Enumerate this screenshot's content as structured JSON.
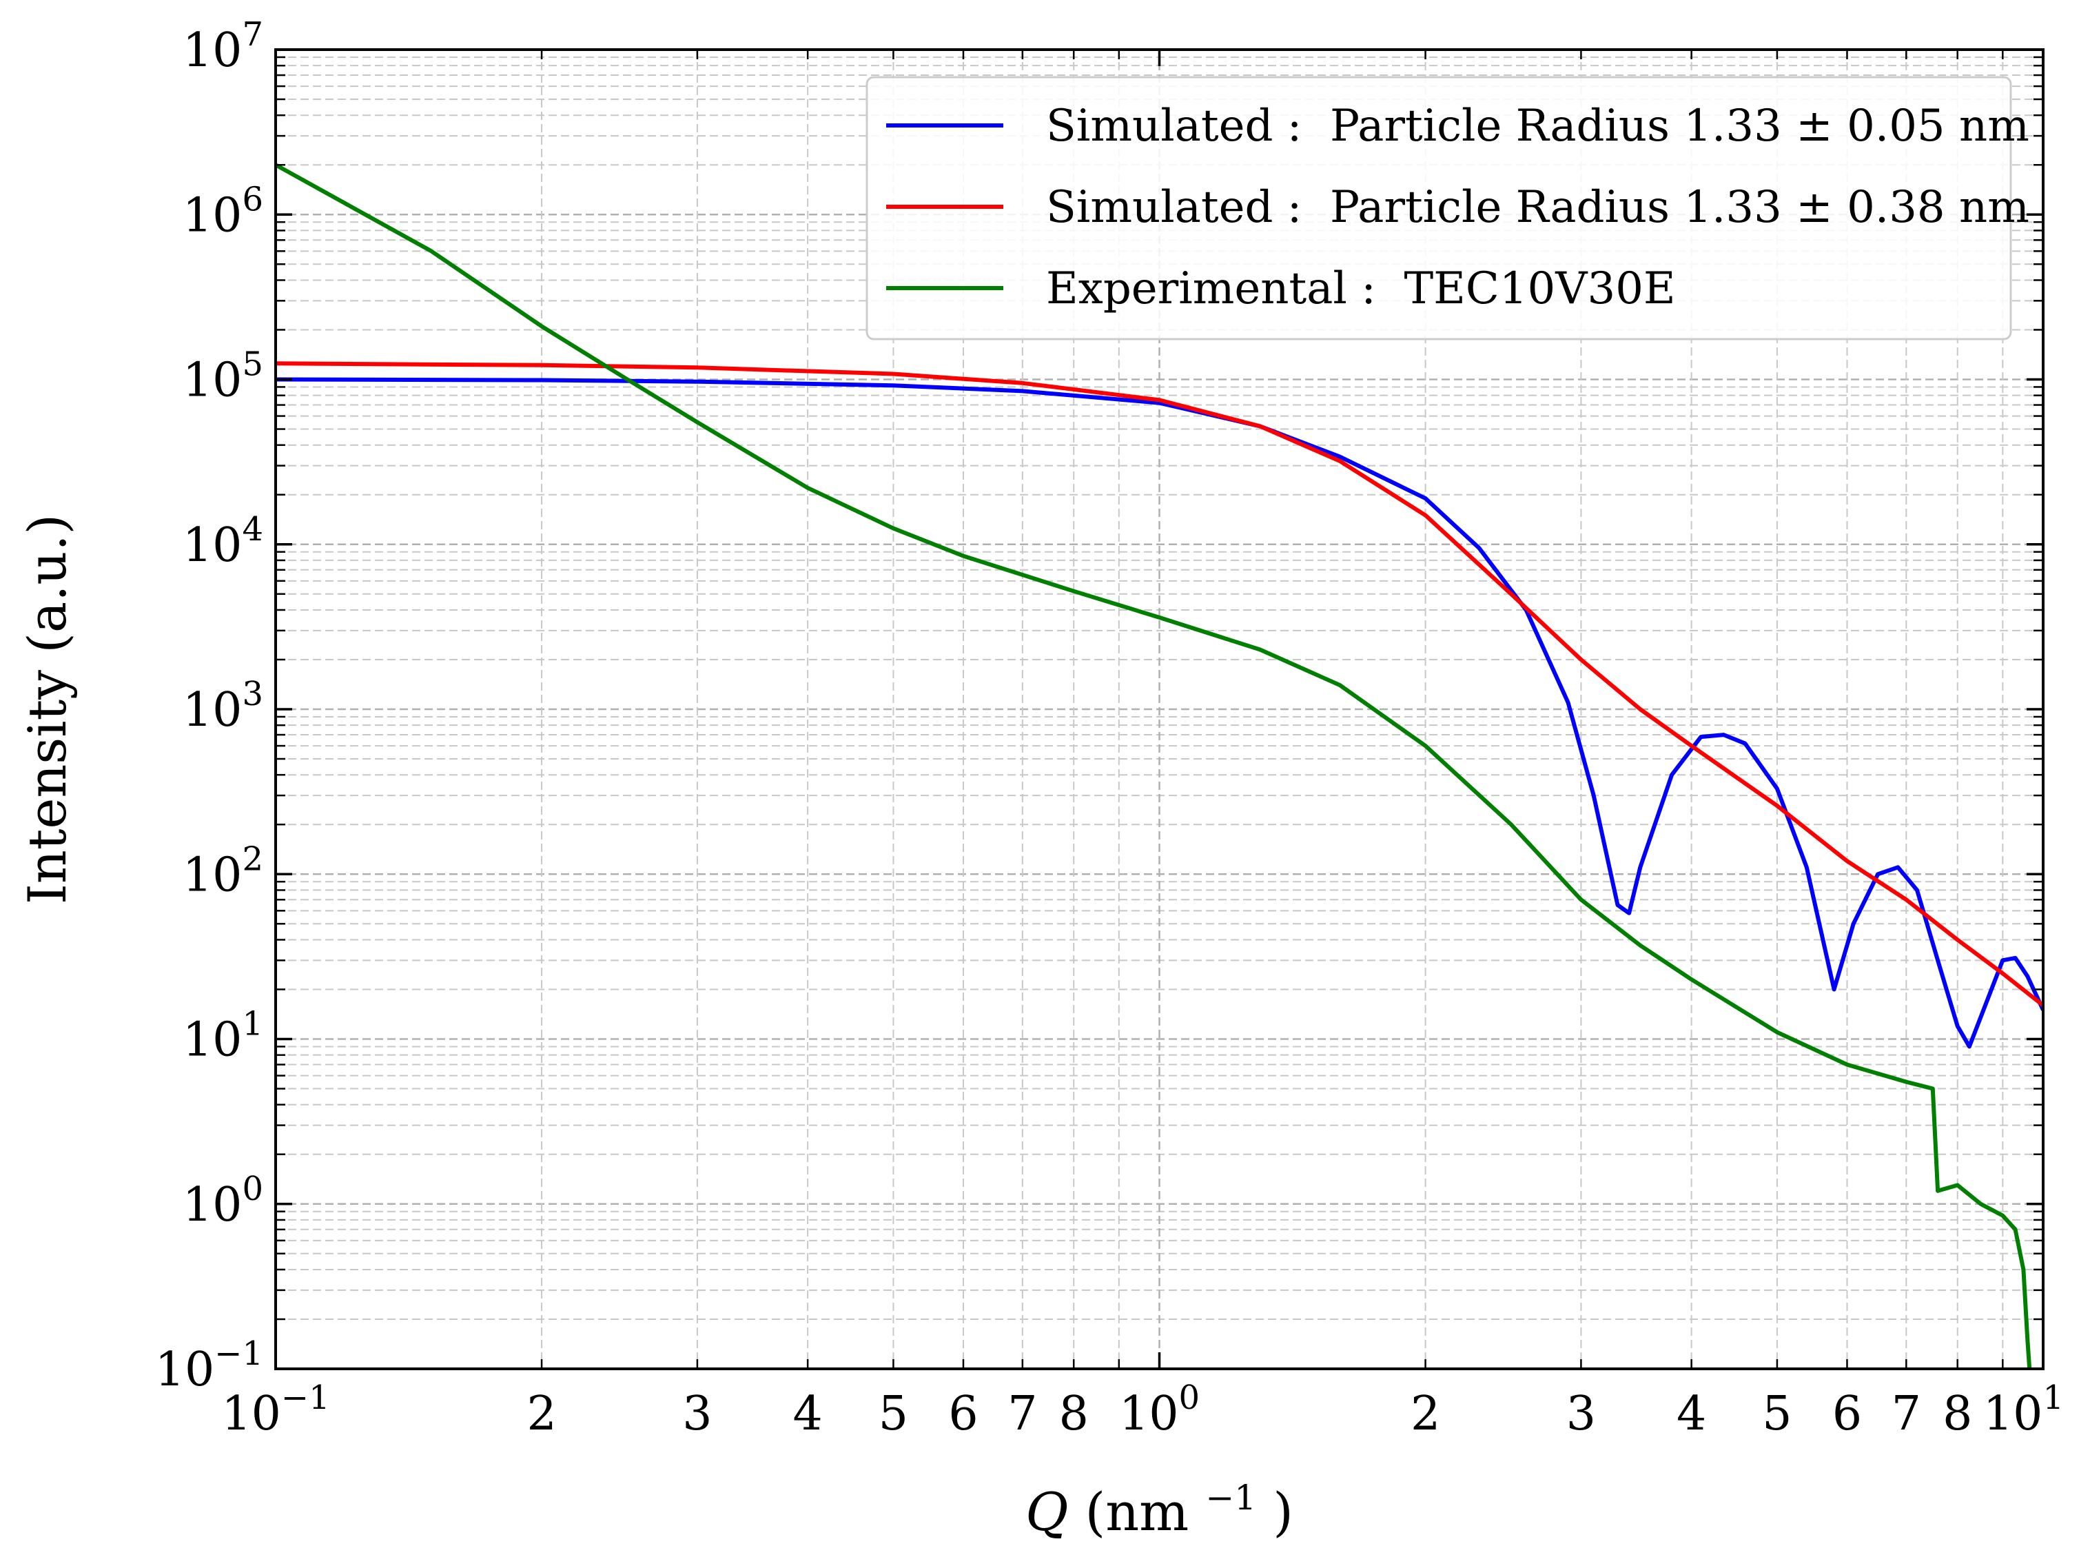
{
  "chart_data": {
    "type": "line",
    "xscale": "log",
    "yscale": "log",
    "xlim": [
      0.1,
      10
    ],
    "ylim": [
      0.1,
      10000000
    ],
    "xlabel": {
      "sym": "Q",
      "unit": "(nm",
      "sup": "−1",
      "close": ")"
    },
    "ylabel": "Intensity (a.u.)",
    "grid": true,
    "legend_position": "top-right",
    "x_major_ticks": [
      {
        "value": 0.1,
        "base": "10",
        "exp": "−1"
      },
      {
        "value": 1,
        "base": "10",
        "exp": "0"
      },
      {
        "value": 10,
        "base": "10",
        "exp": "1"
      }
    ],
    "x_minor_ticks": [
      {
        "value": 0.2,
        "label": "2"
      },
      {
        "value": 0.3,
        "label": "3"
      },
      {
        "value": 0.4,
        "label": "4"
      },
      {
        "value": 0.5,
        "label": "5"
      },
      {
        "value": 0.6,
        "label": "6"
      },
      {
        "value": 0.7,
        "label": "7"
      },
      {
        "value": 0.8,
        "label": "8"
      },
      {
        "value": 0.9,
        "label": ""
      },
      {
        "value": 2,
        "label": "2"
      },
      {
        "value": 3,
        "label": "3"
      },
      {
        "value": 4,
        "label": "4"
      },
      {
        "value": 5,
        "label": "5"
      },
      {
        "value": 6,
        "label": "6"
      },
      {
        "value": 7,
        "label": "7"
      },
      {
        "value": 8,
        "label": "8"
      },
      {
        "value": 9,
        "label": ""
      }
    ],
    "y_major_ticks": [
      {
        "value": 0.1,
        "base": "10",
        "exp": "−1"
      },
      {
        "value": 1,
        "base": "10",
        "exp": "0"
      },
      {
        "value": 10,
        "base": "10",
        "exp": "1"
      },
      {
        "value": 100,
        "base": "10",
        "exp": "2"
      },
      {
        "value": 1000,
        "base": "10",
        "exp": "3"
      },
      {
        "value": 10000,
        "base": "10",
        "exp": "4"
      },
      {
        "value": 100000,
        "base": "10",
        "exp": "5"
      },
      {
        "value": 1000000,
        "base": "10",
        "exp": "6"
      },
      {
        "value": 10000000,
        "base": "10",
        "exp": "7"
      }
    ],
    "series": [
      {
        "name": "Simulated : Particle Radius 1.33 ± 0.05 nm",
        "legend_label": "Simulated :  Particle Radius 1.33 ± 0.05 nm",
        "color": "#0000ff",
        "x": [
          0.1,
          0.2,
          0.3,
          0.5,
          0.7,
          1.0,
          1.3,
          1.6,
          2.0,
          2.3,
          2.6,
          2.9,
          3.1,
          3.3,
          3.4,
          3.5,
          3.8,
          4.1,
          4.35,
          4.6,
          5.0,
          5.4,
          5.8,
          6.1,
          6.5,
          6.85,
          7.2,
          7.6,
          8.0,
          8.25,
          8.6,
          9.0,
          9.3,
          9.6,
          10.0
        ],
        "y": [
          100000,
          99000,
          97000,
          92000,
          85000,
          72000,
          52000,
          34000,
          19000,
          9500,
          4000,
          1100,
          300,
          65,
          58,
          110,
          400,
          680,
          700,
          620,
          330,
          110,
          20,
          50,
          100,
          110,
          80,
          30,
          12,
          9,
          16,
          30,
          31,
          24,
          15
        ]
      },
      {
        "name": "Simulated : Particle Radius 1.33 ± 0.38 nm",
        "legend_label": "Simulated :  Particle Radius 1.33 ± 0.38 nm",
        "color": "#ff0000",
        "x": [
          0.1,
          0.2,
          0.3,
          0.5,
          0.7,
          1.0,
          1.3,
          1.6,
          2.0,
          2.5,
          3.0,
          3.5,
          4.0,
          5.0,
          6.0,
          7.0,
          8.0,
          9.0,
          10.0
        ],
        "y": [
          125000,
          122000,
          118000,
          108000,
          95000,
          75000,
          52000,
          32000,
          15000,
          5000,
          2000,
          1000,
          600,
          260,
          120,
          70,
          40,
          25,
          16
        ]
      },
      {
        "name": "Experimental : TEC10V30E",
        "legend_label": "Experimental :  TEC10V30E",
        "color": "#007f00",
        "x": [
          0.1,
          0.15,
          0.2,
          0.25,
          0.3,
          0.4,
          0.5,
          0.6,
          0.8,
          1.0,
          1.3,
          1.6,
          2.0,
          2.5,
          3.0,
          3.5,
          4.0,
          5.0,
          6.0,
          7.0,
          7.5,
          7.6,
          8.0,
          8.5,
          9.0,
          9.3,
          9.5,
          9.6,
          9.65
        ],
        "y": [
          2000000,
          600000,
          210000,
          100000,
          55000,
          22000,
          12500,
          8500,
          5200,
          3600,
          2300,
          1400,
          600,
          200,
          70,
          37,
          23,
          11,
          7,
          5.5,
          5.0,
          1.2,
          1.3,
          1.0,
          0.85,
          0.7,
          0.4,
          0.15,
          0.1
        ]
      }
    ]
  }
}
